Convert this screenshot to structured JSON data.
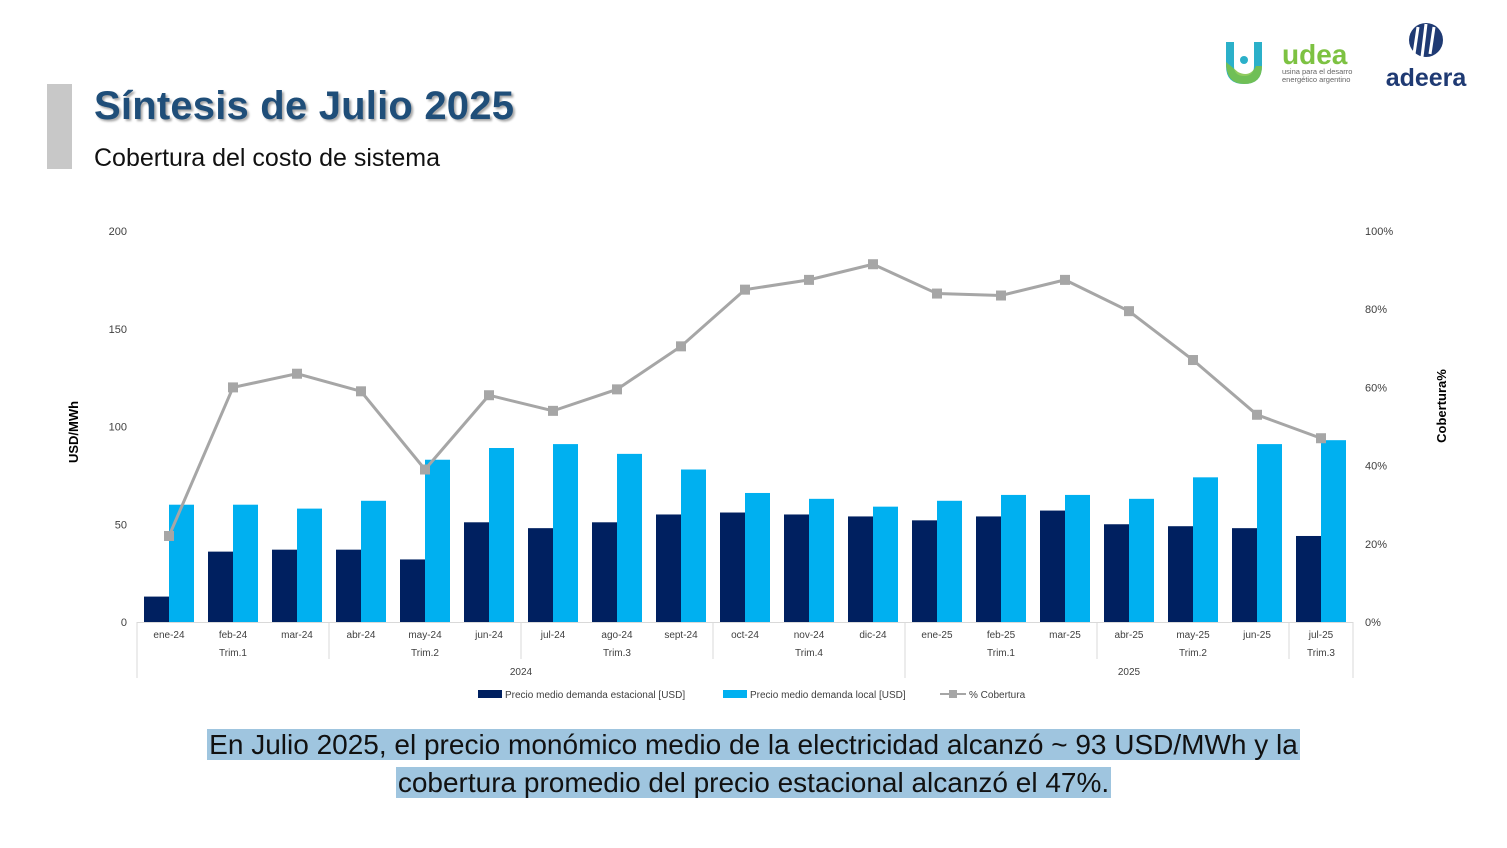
{
  "header": {
    "title": "Síntesis de Julio 2025",
    "subtitle": "Cobertura del costo de sistema"
  },
  "logos": {
    "udea": {
      "name": "udea",
      "tagline_line1": "usina para el desarro",
      "tagline_line2": "energético argentino"
    },
    "adeera": {
      "name": "adeera"
    }
  },
  "caption": {
    "line1": "En Julio 2025, el precio monómico medio de la electricidad alcanzó ~ 93 USD/MWh y la",
    "line2": "cobertura promedio del precio estacional alcanzó el 47%."
  },
  "colors": {
    "title": "#1f4e79",
    "estacional": "#002060",
    "local": "#00b0f0",
    "cobertura": "#a6a6a6",
    "caption_highlight": "#9fc5df"
  },
  "chart_data": {
    "type": "bar",
    "categories": [
      "ene-24",
      "feb-24",
      "mar-24",
      "abr-24",
      "may-24",
      "jun-24",
      "jul-24",
      "ago-24",
      "sept-24",
      "oct-24",
      "nov-24",
      "dic-24",
      "ene-25",
      "feb-25",
      "mar-25",
      "abr-25",
      "may-25",
      "jun-25",
      "jul-25"
    ],
    "quarters": [
      {
        "label": "Trim.1",
        "start": 0,
        "end": 2
      },
      {
        "label": "Trim.2",
        "start": 3,
        "end": 5
      },
      {
        "label": "Trim.3",
        "start": 6,
        "end": 8
      },
      {
        "label": "Trim.4",
        "start": 9,
        "end": 11
      },
      {
        "label": "Trim.1",
        "start": 12,
        "end": 14
      },
      {
        "label": "Trim.2",
        "start": 15,
        "end": 17
      },
      {
        "label": "Trim.3",
        "start": 18,
        "end": 18
      }
    ],
    "years": [
      {
        "label": "2024",
        "start": 0,
        "end": 11
      },
      {
        "label": "2025",
        "start": 12,
        "end": 18
      }
    ],
    "series": [
      {
        "name": "Precio medio demanda estacional [USD]",
        "type": "bar",
        "axis": "left",
        "values": [
          13,
          36,
          37,
          37,
          32,
          51,
          48,
          51,
          55,
          56,
          55,
          54,
          52,
          54,
          57,
          50,
          49,
          48,
          44
        ]
      },
      {
        "name": "Precio medio demanda local [USD]",
        "type": "bar",
        "axis": "left",
        "values": [
          60,
          60,
          58,
          62,
          83,
          89,
          91,
          86,
          78,
          66,
          63,
          59,
          62,
          65,
          65,
          63,
          74,
          91,
          93
        ]
      },
      {
        "name": "% Cobertura",
        "type": "line",
        "axis": "right",
        "values": [
          22,
          60,
          63.5,
          59,
          39,
          58,
          54,
          59.5,
          70.5,
          85,
          87.5,
          91.5,
          84,
          83.5,
          87.5,
          79.5,
          67,
          53,
          47
        ]
      }
    ],
    "ylabel": "USD/MWh",
    "ylabel_right": "Cobertura%",
    "ylim": [
      0,
      200
    ],
    "yticks": [
      "0",
      "50",
      "100",
      "150",
      "200"
    ],
    "ylim_right": [
      0,
      100
    ],
    "yticks_right": [
      "0%",
      "20%",
      "40%",
      "60%",
      "80%",
      "100%"
    ],
    "legend_position": "bottom",
    "grid": false
  }
}
